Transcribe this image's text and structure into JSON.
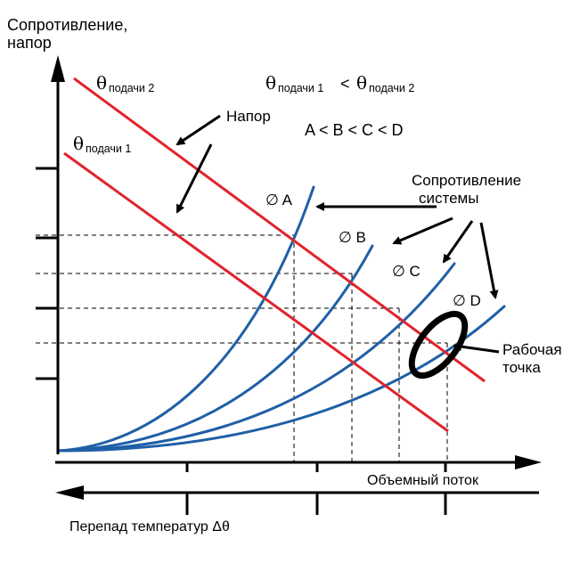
{
  "labels": {
    "y_axis_line1": "Сопротивление,",
    "y_axis_line2": "напор",
    "x_axis": "Объемный поток",
    "x_axis_reverse": "Перепад температур Δθ",
    "theta_symbol": "θ",
    "theta_sub_2": "подачи 2",
    "theta_sub_1": "подачи 1",
    "relation_less": "<",
    "order": "A < B < C < D",
    "head": "Напор",
    "system_line1": "Сопротивление",
    "system_line2": "системы",
    "work_line1": "Рабочая",
    "work_line2": "точка",
    "curve_a": "∅ A",
    "curve_b": "∅ B",
    "curve_c": "∅ C",
    "curve_d": "∅ D"
  },
  "colors": {
    "axis": "#000000",
    "pump_lines": "#e0232b",
    "system_curves": "#1f5fa6",
    "guides": "#000000"
  }
}
